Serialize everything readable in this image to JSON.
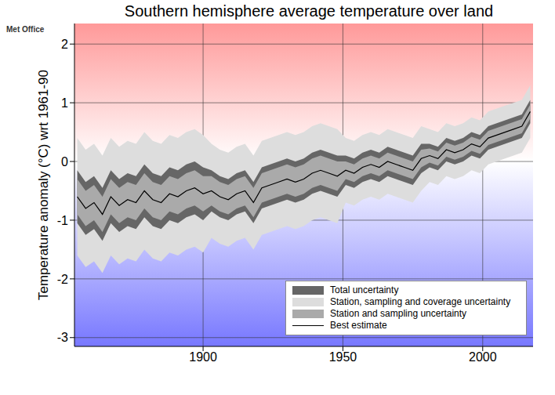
{
  "chart_data": {
    "type": "line",
    "title": "Southern hemisphere average temperature over land",
    "y_label": "Temperature anomaly (°C) wrt 1961-90",
    "annotations": [
      "Met Office"
    ],
    "x": [
      1855,
      1858,
      1861,
      1864,
      1867,
      1870,
      1873,
      1876,
      1879,
      1882,
      1885,
      1888,
      1891,
      1894,
      1897,
      1900,
      1903,
      1906,
      1909,
      1912,
      1915,
      1918,
      1921,
      1924,
      1927,
      1930,
      1933,
      1936,
      1939,
      1942,
      1945,
      1948,
      1951,
      1954,
      1957,
      1960,
      1963,
      1966,
      1969,
      1972,
      1975,
      1978,
      1981,
      1984,
      1987,
      1990,
      1993,
      1996,
      1999,
      2002,
      2005,
      2008,
      2011,
      2014,
      2017
    ],
    "xlim": [
      1854,
      2018
    ],
    "xticks": [
      1900,
      1950,
      2000
    ],
    "ylim": [
      -3.15,
      2.35
    ],
    "yticks": [
      -3,
      -2,
      -1,
      0,
      1,
      2
    ],
    "grid": true,
    "legend": "lower right",
    "series": [
      {
        "name": "Total uncertainty",
        "type": "area",
        "color": "#666666",
        "lower": [
          -1.05,
          -1.25,
          -1.15,
          -1.35,
          -1.05,
          -1.2,
          -1.1,
          -1.15,
          -0.95,
          -1.1,
          -1.15,
          -1.0,
          -1.05,
          -0.95,
          -0.9,
          -1.0,
          -0.85,
          -0.95,
          -1.0,
          -0.9,
          -0.85,
          -1.05,
          -0.8,
          -0.75,
          -0.7,
          -0.65,
          -0.7,
          -0.65,
          -0.55,
          -0.5,
          -0.55,
          -0.6,
          -0.4,
          -0.45,
          -0.35,
          -0.3,
          -0.35,
          -0.25,
          -0.3,
          -0.35,
          -0.4,
          -0.2,
          -0.1,
          -0.15,
          0.0,
          -0.05,
          0.0,
          0.1,
          0.05,
          0.2,
          0.25,
          0.3,
          0.35,
          0.4,
          0.65
        ],
        "upper": [
          -0.15,
          -0.35,
          -0.25,
          -0.45,
          -0.15,
          -0.3,
          -0.2,
          -0.25,
          -0.05,
          -0.2,
          -0.25,
          -0.1,
          -0.15,
          -0.05,
          0.0,
          -0.1,
          -0.15,
          -0.25,
          -0.3,
          -0.2,
          -0.15,
          -0.35,
          -0.1,
          -0.05,
          0.0,
          0.05,
          0.0,
          0.05,
          0.15,
          0.2,
          0.15,
          0.1,
          0.1,
          0.05,
          0.15,
          0.2,
          0.15,
          0.25,
          0.2,
          0.15,
          0.1,
          0.3,
          0.3,
          0.25,
          0.4,
          0.35,
          0.4,
          0.5,
          0.45,
          0.6,
          0.65,
          0.7,
          0.75,
          0.8,
          1.05
        ]
      },
      {
        "name": "Station, sampling and coverage uncertainty",
        "type": "area",
        "color": "#dddddd",
        "lower": [
          -1.6,
          -1.8,
          -1.7,
          -1.9,
          -1.6,
          -1.75,
          -1.65,
          -1.7,
          -1.5,
          -1.65,
          -1.7,
          -1.55,
          -1.6,
          -1.5,
          -1.45,
          -1.55,
          -1.3,
          -1.4,
          -1.45,
          -1.35,
          -1.3,
          -1.5,
          -1.25,
          -1.2,
          -1.15,
          -1.1,
          -1.15,
          -1.1,
          -1.0,
          -0.95,
          -1.0,
          -1.05,
          -0.7,
          -0.75,
          -0.65,
          -0.6,
          -0.65,
          -0.55,
          -0.6,
          -0.65,
          -0.7,
          -0.5,
          -0.35,
          -0.4,
          -0.25,
          -0.3,
          -0.25,
          -0.15,
          -0.2,
          -0.05,
          0.0,
          0.05,
          0.1,
          0.15,
          0.4
        ],
        "upper": [
          0.4,
          0.2,
          0.3,
          0.1,
          0.4,
          0.25,
          0.35,
          0.3,
          0.5,
          0.35,
          0.3,
          0.45,
          0.4,
          0.5,
          0.55,
          0.45,
          0.3,
          0.2,
          0.15,
          0.25,
          0.3,
          0.1,
          0.35,
          0.4,
          0.45,
          0.5,
          0.45,
          0.5,
          0.6,
          0.65,
          0.6,
          0.55,
          0.4,
          0.35,
          0.45,
          0.5,
          0.45,
          0.55,
          0.5,
          0.45,
          0.4,
          0.6,
          0.55,
          0.5,
          0.65,
          0.6,
          0.65,
          0.75,
          0.7,
          0.85,
          0.9,
          0.95,
          1.0,
          1.05,
          1.3
        ]
      },
      {
        "name": "Station and sampling uncertainty",
        "type": "area",
        "color": "#aaaaaa",
        "lower": [
          -0.9,
          -1.1,
          -1.0,
          -1.2,
          -0.9,
          -1.05,
          -0.95,
          -1.0,
          -0.8,
          -0.95,
          -1.0,
          -0.85,
          -0.9,
          -0.8,
          -0.75,
          -0.85,
          -0.75,
          -0.85,
          -0.9,
          -0.8,
          -0.75,
          -0.95,
          -0.7,
          -0.65,
          -0.6,
          -0.55,
          -0.6,
          -0.55,
          -0.45,
          -0.4,
          -0.45,
          -0.5,
          -0.3,
          -0.35,
          -0.25,
          -0.2,
          -0.25,
          -0.15,
          -0.2,
          -0.25,
          -0.3,
          -0.1,
          -0.02,
          -0.07,
          0.08,
          0.03,
          0.08,
          0.18,
          0.13,
          0.28,
          0.33,
          0.38,
          0.43,
          0.48,
          0.73
        ],
        "upper": [
          -0.3,
          -0.5,
          -0.4,
          -0.6,
          -0.3,
          -0.45,
          -0.35,
          -0.4,
          -0.2,
          -0.35,
          -0.4,
          -0.25,
          -0.3,
          -0.2,
          -0.15,
          -0.25,
          -0.25,
          -0.35,
          -0.4,
          -0.3,
          -0.25,
          -0.45,
          -0.2,
          -0.15,
          -0.1,
          -0.05,
          -0.1,
          -0.05,
          0.05,
          0.1,
          0.05,
          0.0,
          0.0,
          -0.05,
          0.05,
          0.1,
          0.05,
          0.15,
          0.1,
          0.05,
          0.0,
          0.2,
          0.22,
          0.17,
          0.32,
          0.27,
          0.32,
          0.42,
          0.37,
          0.52,
          0.57,
          0.62,
          0.67,
          0.72,
          0.97
        ]
      },
      {
        "name": "Best estimate",
        "type": "line",
        "color": "#000000",
        "values": [
          -0.6,
          -0.8,
          -0.7,
          -0.9,
          -0.6,
          -0.75,
          -0.65,
          -0.7,
          -0.5,
          -0.65,
          -0.7,
          -0.55,
          -0.6,
          -0.5,
          -0.45,
          -0.55,
          -0.5,
          -0.6,
          -0.65,
          -0.55,
          -0.5,
          -0.7,
          -0.45,
          -0.4,
          -0.35,
          -0.3,
          -0.35,
          -0.3,
          -0.2,
          -0.15,
          -0.2,
          -0.25,
          -0.15,
          -0.2,
          -0.1,
          -0.05,
          -0.1,
          0.0,
          -0.05,
          -0.1,
          -0.15,
          0.05,
          0.1,
          0.05,
          0.2,
          0.15,
          0.2,
          0.3,
          0.25,
          0.4,
          0.45,
          0.5,
          0.55,
          0.6,
          0.85
        ]
      }
    ]
  }
}
